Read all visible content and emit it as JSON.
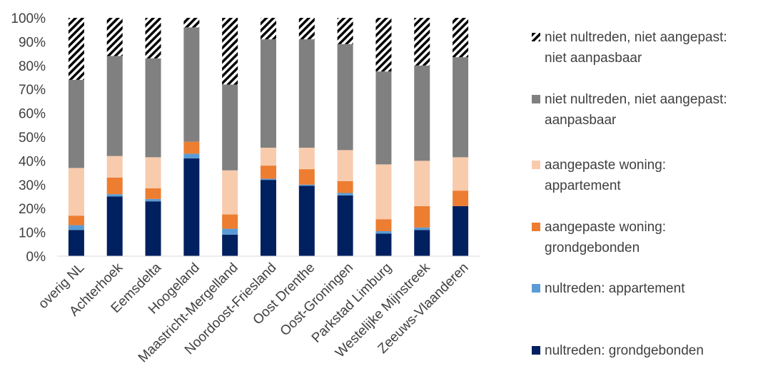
{
  "chart_data": {
    "type": "bar",
    "stacked": true,
    "percent": true,
    "title": "",
    "xlabel": "",
    "ylabel": "",
    "ylim": [
      0,
      100
    ],
    "yticks": [
      "0%",
      "10%",
      "20%",
      "30%",
      "40%",
      "50%",
      "60%",
      "70%",
      "80%",
      "90%",
      "100%"
    ],
    "grid": false,
    "legend_position": "right",
    "categories": [
      "overig NL",
      "Achterhoek",
      "Eemsdelta",
      "Hoogeland",
      "Maastricht-Mergelland",
      "Noordoost-Friesland",
      "Oost Drenthe",
      "Oost-Groningen",
      "Parkstad Limburg",
      "Westelijke Mijnstreek",
      "Zeeuws-Vlaanderen"
    ],
    "series": [
      {
        "name": "nultreden: grondgebonden",
        "color": "#002060",
        "pattern": "solid",
        "values": [
          11,
          25,
          23,
          41,
          9,
          32,
          29.5,
          25.5,
          9.5,
          11,
          21
        ]
      },
      {
        "name": "nultreden: appartement",
        "color": "#5b9bd5",
        "pattern": "solid",
        "values": [
          2,
          1,
          1,
          2,
          2.5,
          0.5,
          0.5,
          1,
          1,
          1,
          0
        ]
      },
      {
        "name": "aangepaste woning: grondgebonden",
        "color": "#ed7d31",
        "pattern": "solid",
        "values": [
          4,
          7,
          4.5,
          5,
          6,
          5.5,
          6.5,
          5,
          5,
          9,
          6.5
        ]
      },
      {
        "name": "aangepaste woning: appartement",
        "color": "#f8cbad",
        "pattern": "solid",
        "values": [
          20,
          9,
          13,
          0,
          18.5,
          7.5,
          9,
          13,
          23,
          19,
          14
        ]
      },
      {
        "name": "niet nultreden, niet aangepast: aanpasbaar",
        "color": "#808080",
        "pattern": "solid",
        "values": [
          37,
          42,
          41.5,
          48,
          36,
          45.5,
          45.5,
          44.5,
          39,
          40,
          42
        ]
      },
      {
        "name": "niet nultreden, niet aangepast: niet aanpasbaar",
        "color": "#000000",
        "pattern": "diagonal-hatch",
        "values": [
          26,
          16,
          17,
          4,
          28,
          9,
          9,
          11,
          22.5,
          20,
          16.5
        ]
      }
    ],
    "legend": [
      {
        "lines": [
          "niet nultreden, niet aangepast:",
          "niet aanpasbaar"
        ]
      },
      {
        "lines": [
          "niet nultreden, niet aangepast:",
          "aanpasbaar"
        ]
      },
      {
        "lines": [
          "aangepaste woning:",
          "appartement"
        ]
      },
      {
        "lines": [
          "aangepaste woning:",
          "grondgebonden"
        ]
      },
      {
        "lines": [
          "nultreden: appartement"
        ]
      },
      {
        "lines": [
          "nultreden: grondgebonden"
        ]
      }
    ]
  }
}
